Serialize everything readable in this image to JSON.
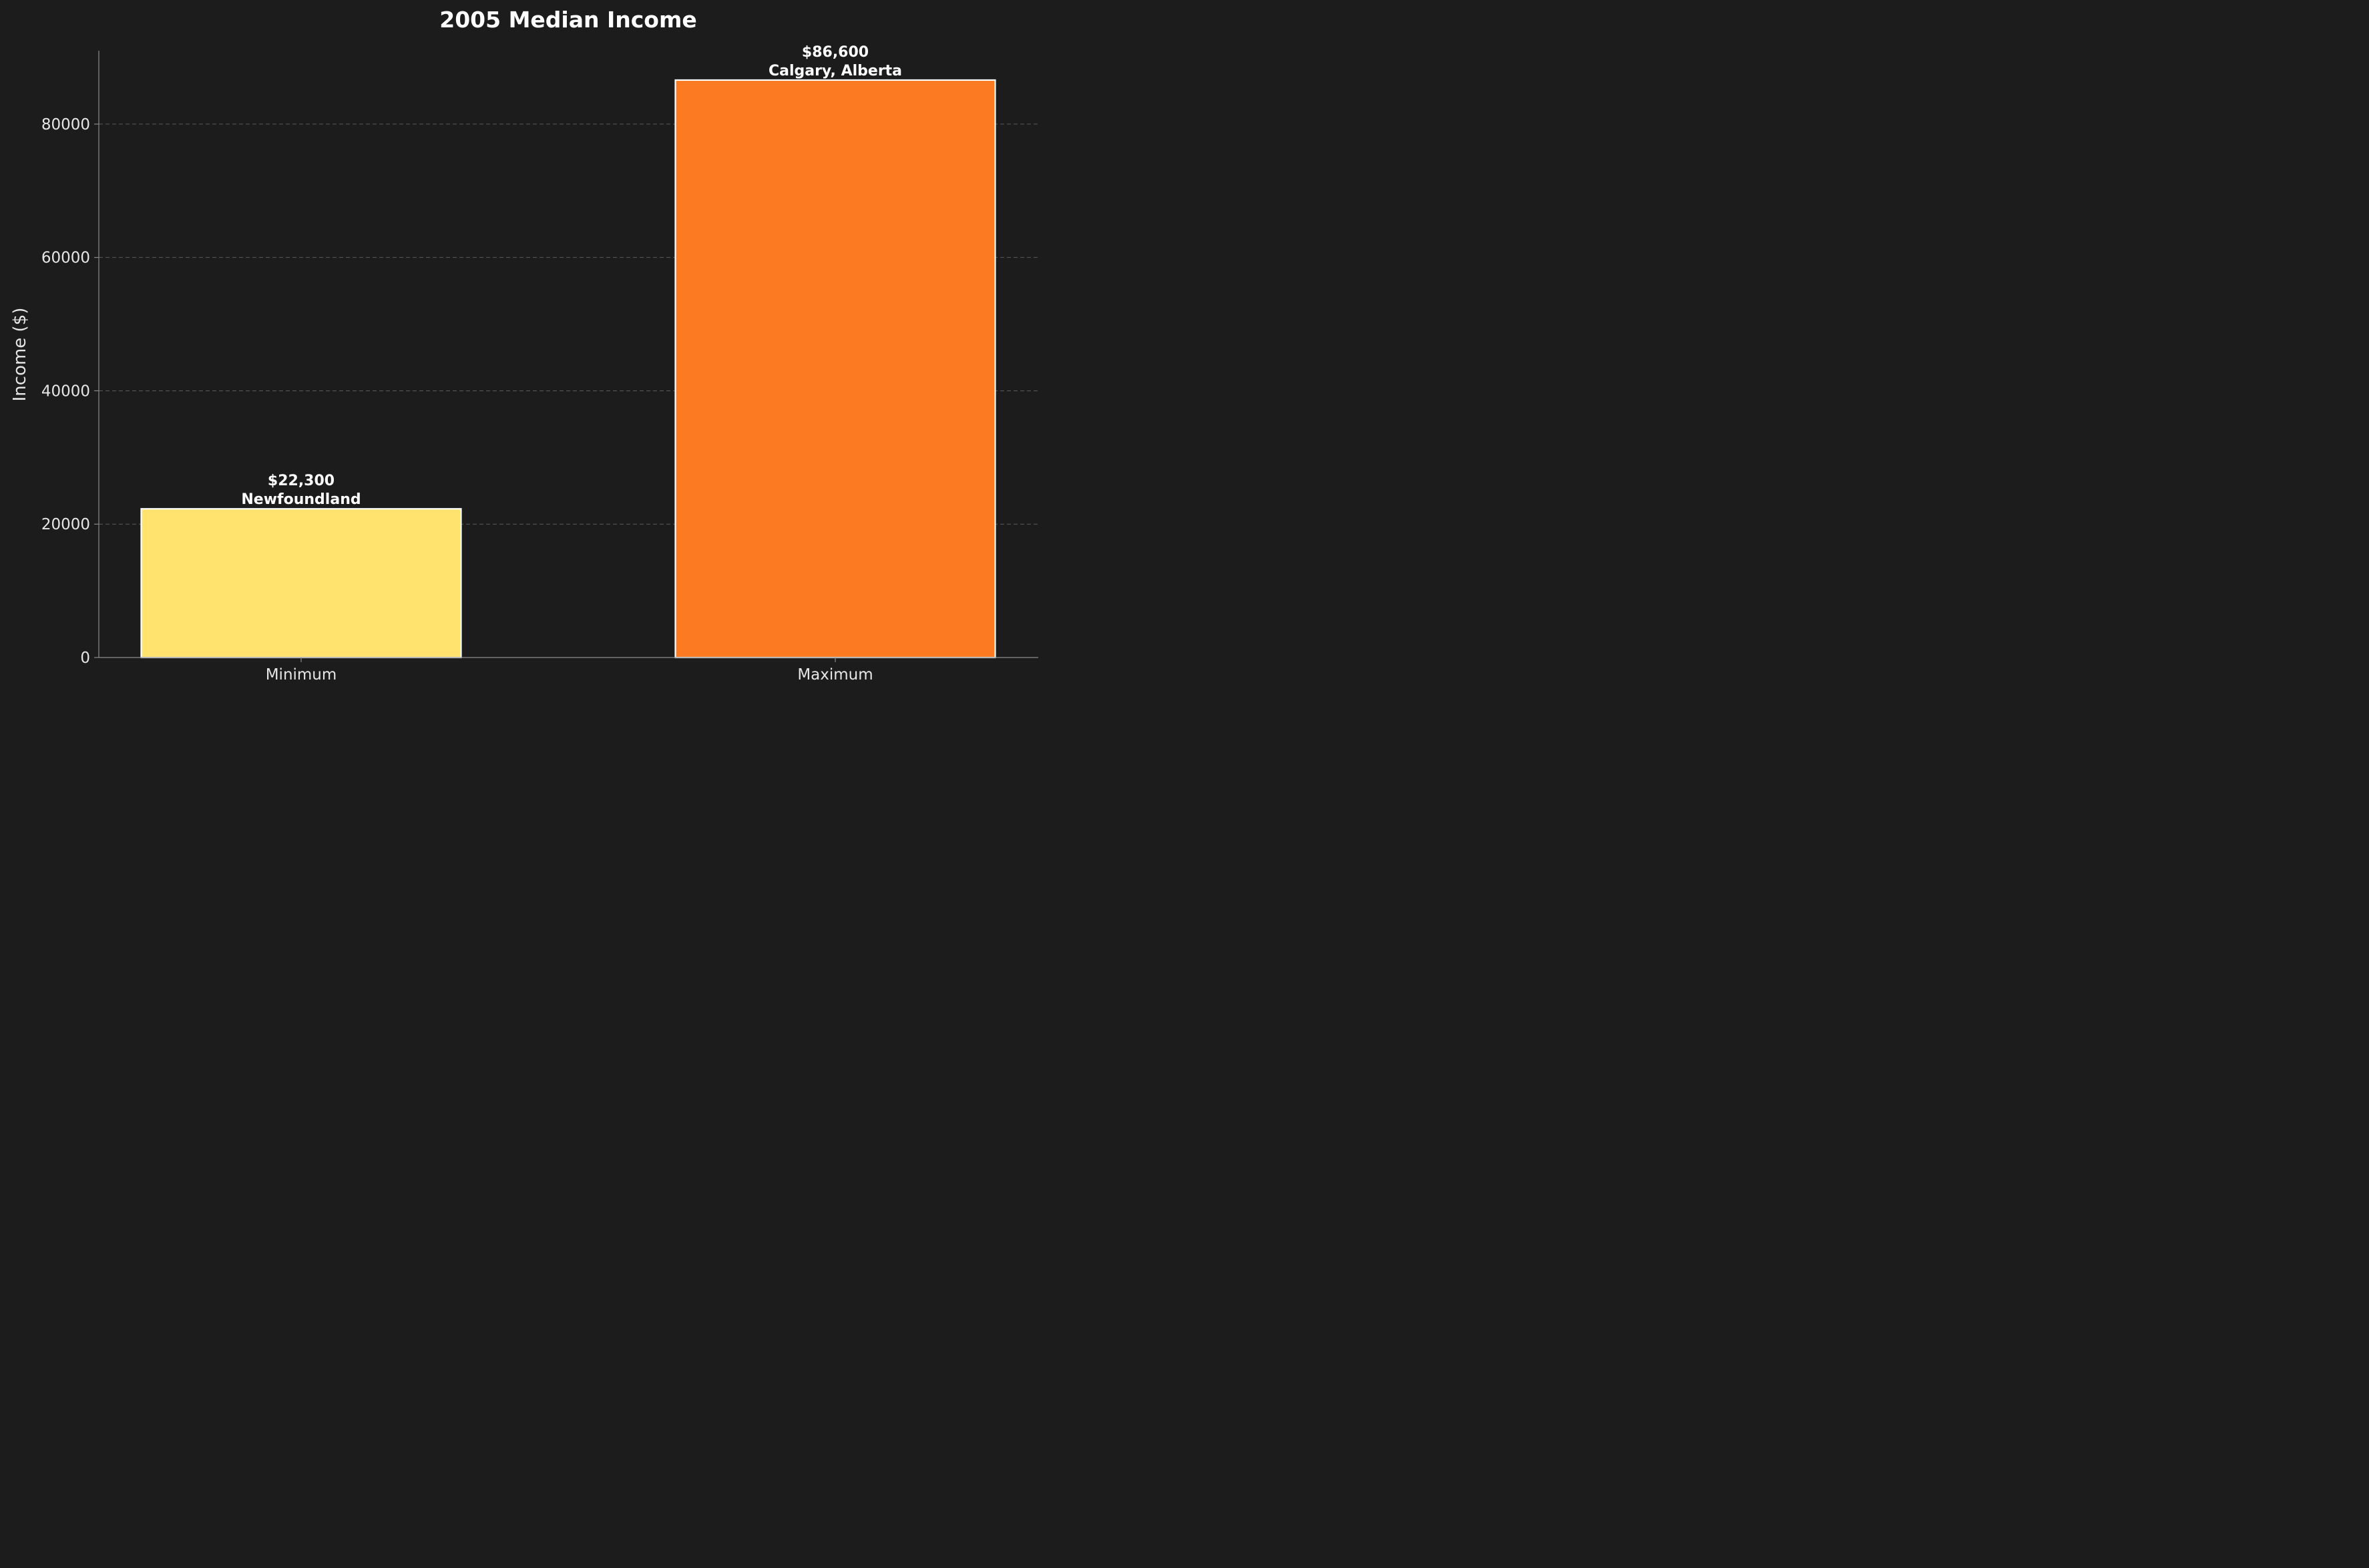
{
  "chart_data": {
    "type": "bar",
    "title": "2005 Median Income",
    "xlabel": "",
    "ylabel": "Income ($)",
    "categories": [
      "Minimum",
      "Maximum"
    ],
    "values": [
      22300,
      86600
    ],
    "value_labels": [
      "$22,300",
      "$86,600"
    ],
    "place_labels": [
      "Newfoundland",
      "Calgary, Alberta"
    ],
    "colors": [
      "#ffe36e",
      "#fb7a22"
    ],
    "ylim": [
      0,
      91000
    ],
    "yticks": [
      0,
      20000,
      40000,
      60000,
      80000
    ],
    "grid": "horizontal dashed",
    "legend": "none"
  }
}
